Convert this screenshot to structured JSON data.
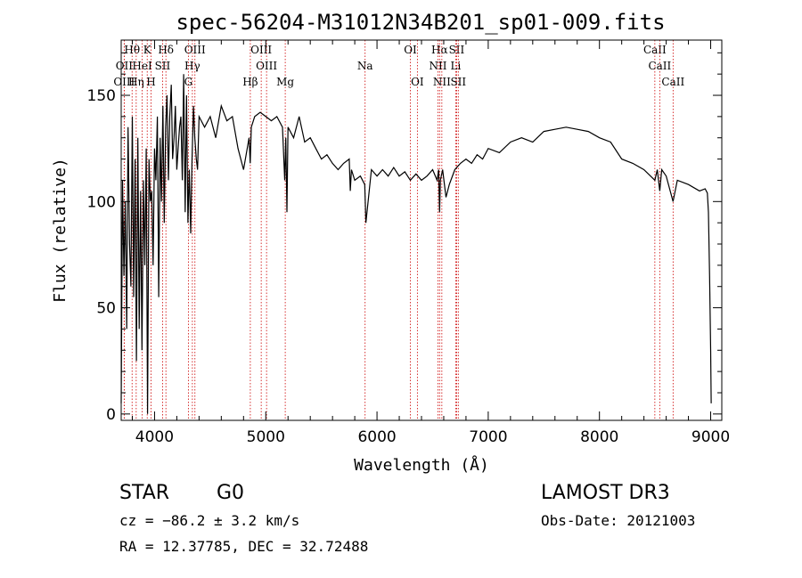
{
  "chart_data": {
    "type": "line",
    "title": "spec-56204-M31012N34B201_sp01-009.fits",
    "xlabel": "Wavelength (Å)",
    "ylabel": "Flux (relative)",
    "xlim": [
      3700,
      9100
    ],
    "ylim": [
      -3,
      176
    ],
    "x_ticks": [
      4000,
      5000,
      6000,
      7000,
      8000,
      9000
    ],
    "y_ticks": [
      0,
      50,
      100,
      150
    ],
    "grid": false,
    "series": [
      {
        "x": [
          3700,
          3712,
          3725,
          3737,
          3750,
          3762,
          3775,
          3787,
          3800,
          3812,
          3825,
          3837,
          3850,
          3862,
          3875,
          3887,
          3900,
          3912,
          3925,
          3937,
          3950,
          3962,
          3975,
          3987,
          4000,
          4012,
          4025,
          4037,
          4050,
          4062,
          4075,
          4087,
          4100,
          4112,
          4125,
          4137,
          4150,
          4162,
          4175,
          4187,
          4200,
          4212,
          4225,
          4237,
          4250,
          4262,
          4275,
          4287,
          4300,
          4312,
          4325,
          4337,
          4350,
          4362,
          4375,
          4387,
          4400,
          4450,
          4500,
          4550,
          4600,
          4650,
          4700,
          4750,
          4800,
          4850,
          4860,
          4870,
          4900,
          4950,
          5000,
          5050,
          5100,
          5150,
          5170,
          5180,
          5190,
          5200,
          5250,
          5300,
          5350,
          5400,
          5450,
          5500,
          5550,
          5600,
          5650,
          5700,
          5750,
          5760,
          5770,
          5800,
          5850,
          5890,
          5900,
          5950,
          6000,
          6050,
          6100,
          6150,
          6200,
          6250,
          6300,
          6350,
          6400,
          6450,
          6500,
          6540,
          6555,
          6563,
          6570,
          6590,
          6620,
          6650,
          6700,
          6750,
          6800,
          6850,
          6900,
          6950,
          7000,
          7100,
          7200,
          7300,
          7400,
          7500,
          7600,
          7700,
          7800,
          7900,
          8000,
          8100,
          8200,
          8300,
          8400,
          8498,
          8520,
          8542,
          8560,
          8600,
          8662,
          8700,
          8800,
          8900,
          8950,
          8970,
          8980,
          8990,
          9000,
          9005
        ],
        "y": [
          5,
          110,
          65,
          100,
          40,
          135,
          80,
          60,
          140,
          55,
          120,
          25,
          130,
          40,
          105,
          30,
          110,
          70,
          125,
          0,
          120,
          100,
          105,
          70,
          125,
          110,
          140,
          55,
          130,
          100,
          145,
          90,
          135,
          150,
          110,
          140,
          155,
          120,
          130,
          145,
          115,
          125,
          135,
          140,
          110,
          160,
          95,
          150,
          90,
          115,
          85,
          120,
          145,
          130,
          120,
          115,
          140,
          135,
          140,
          130,
          145,
          138,
          140,
          125,
          115,
          130,
          118,
          135,
          140,
          142,
          140,
          138,
          140,
          135,
          110,
          130,
          95,
          135,
          130,
          140,
          128,
          130,
          125,
          120,
          122,
          118,
          115,
          118,
          120,
          105,
          115,
          110,
          112,
          108,
          90,
          115,
          112,
          115,
          112,
          116,
          112,
          114,
          110,
          113,
          110,
          112,
          115,
          110,
          115,
          95,
          110,
          115,
          102,
          108,
          115,
          118,
          120,
          118,
          122,
          120,
          125,
          123,
          128,
          130,
          128,
          133,
          134,
          135,
          134,
          133,
          130,
          128,
          120,
          118,
          115,
          110,
          115,
          105,
          115,
          112,
          100,
          110,
          108,
          105,
          106,
          104,
          95,
          65,
          30,
          5
        ],
        "color": "#000000"
      }
    ],
    "spectral_lines": [
      {
        "label": "Hθ",
        "x": 3798,
        "row": 0
      },
      {
        "label": "K",
        "x": 3934,
        "row": 0
      },
      {
        "label": "Hδ",
        "x": 4102,
        "row": 0
      },
      {
        "label": "OIII",
        "x": 4363,
        "row": 0
      },
      {
        "label": "OIII",
        "x": 4959,
        "row": 0
      },
      {
        "label": "OI",
        "x": 6300,
        "row": 0
      },
      {
        "label": "Hα",
        "x": 6563,
        "row": 0
      },
      {
        "label": "SII",
        "x": 6716,
        "row": 0
      },
      {
        "label": "CaII",
        "x": 8498,
        "row": 0
      },
      {
        "label": "OII",
        "x": 3727,
        "row": 1
      },
      {
        "label": "HeI",
        "x": 3889,
        "row": 1
      },
      {
        "label": "SII",
        "x": 4072,
        "row": 1
      },
      {
        "label": "Hγ",
        "x": 4340,
        "row": 1
      },
      {
        "label": "OIII",
        "x": 5007,
        "row": 1
      },
      {
        "label": "Na",
        "x": 5893,
        "row": 1
      },
      {
        "label": "NII",
        "x": 6548,
        "row": 1
      },
      {
        "label": "Li",
        "x": 6708,
        "row": 1
      },
      {
        "label": "CaII",
        "x": 8542,
        "row": 1
      },
      {
        "label": "OIII",
        "x": 3727,
        "row": 2
      },
      {
        "label": "Hη",
        "x": 3835,
        "row": 2
      },
      {
        "label": "H",
        "x": 3968,
        "row": 2
      },
      {
        "label": "G",
        "x": 4304,
        "row": 2
      },
      {
        "label": "Hβ",
        "x": 4861,
        "row": 2
      },
      {
        "label": "Mg",
        "x": 5175,
        "row": 2
      },
      {
        "label": "OI",
        "x": 6363,
        "row": 2
      },
      {
        "label": "NII",
        "x": 6583,
        "row": 2
      },
      {
        "label": "SII",
        "x": 6731,
        "row": 2
      },
      {
        "label": "CaII",
        "x": 8662,
        "row": 2
      }
    ]
  },
  "info": {
    "object_class": "STAR",
    "subclass": "G0",
    "survey": "LAMOST DR3",
    "cz": "cz = −86.2 ± 3.2 km/s",
    "obs_date": "Obs-Date: 20121003",
    "coords": "RA =  12.37785, DEC =  32.72488"
  },
  "colors": {
    "spectrum": "#000000",
    "line_marker": "#cc0000",
    "background": "#ffffff"
  }
}
